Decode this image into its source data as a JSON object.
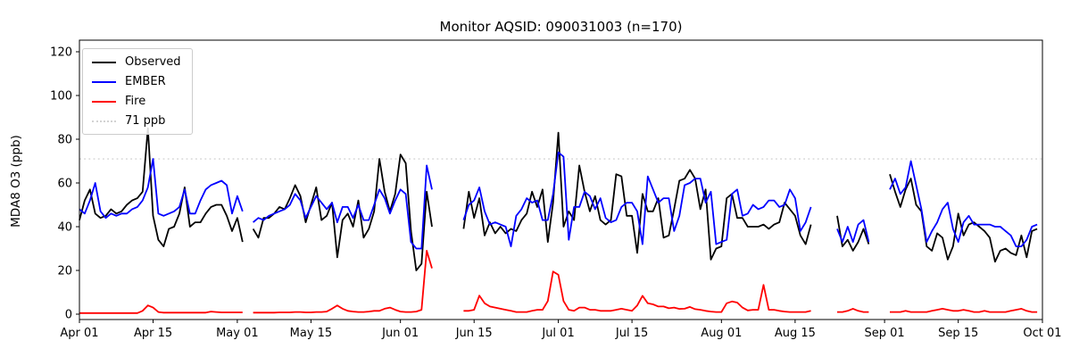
{
  "chart_data": {
    "type": "line",
    "title": "Monitor AQSID: 090031003 (n=170)",
    "ylabel": "MDA8 O3 (ppb)",
    "xlabel": "",
    "n_points": 170,
    "grid": false,
    "legend_position": "upper left",
    "ylim": [
      -2.5,
      125.3
    ],
    "yticks": [
      0,
      20,
      40,
      60,
      80,
      100,
      120
    ],
    "x_total_days": 183,
    "xticks": {
      "labels": [
        "Apr 01",
        "Apr 15",
        "May 01",
        "May 15",
        "Jun 01",
        "Jun 15",
        "Jul 01",
        "Jul 15",
        "Aug 01",
        "Aug 15",
        "Sep 01",
        "Sep 15",
        "Oct 01"
      ],
      "day_offsets": [
        0,
        14,
        30,
        44,
        61,
        75,
        91,
        105,
        122,
        136,
        153,
        167,
        183
      ]
    },
    "threshold": {
      "label": "71 ppb",
      "value": 71,
      "color": "#d3d3d3",
      "style": "dotted"
    },
    "legend_items": [
      {
        "label": "Observed",
        "color": "#000000",
        "dotted": false
      },
      {
        "label": "EMBER",
        "color": "#0000ff",
        "dotted": false
      },
      {
        "label": "Fire",
        "color": "#ff0000",
        "dotted": false
      },
      {
        "label": "71 ppb",
        "color": "#d3d3d3",
        "dotted": true
      }
    ],
    "series": [
      {
        "name": "Observed",
        "color": "#000000",
        "values": [
          43,
          52,
          57,
          46,
          44,
          45,
          48,
          46,
          47,
          50,
          52,
          53,
          56,
          85,
          45,
          34,
          31,
          39,
          40,
          46,
          58,
          40,
          42,
          42,
          46,
          49,
          50,
          50,
          45,
          38,
          44,
          33,
          null,
          39,
          35,
          44,
          44,
          46,
          49,
          48,
          53,
          59,
          54,
          42,
          50,
          58,
          43,
          45,
          51,
          26,
          43,
          46,
          40,
          52,
          35,
          39,
          47,
          71,
          56,
          47,
          55,
          73,
          69,
          38,
          20,
          23,
          56,
          40,
          null,
          null,
          null,
          null,
          null,
          39,
          56,
          44,
          53,
          36,
          42,
          37,
          40,
          37,
          39,
          38,
          43,
          46,
          56,
          49,
          57,
          33,
          51,
          83,
          40,
          47,
          43,
          68,
          56,
          47,
          54,
          43,
          41,
          43,
          64,
          63,
          45,
          45,
          28,
          55,
          47,
          47,
          53,
          35,
          36,
          48,
          61,
          62,
          66,
          62,
          48,
          57,
          25,
          30,
          31,
          53,
          55,
          44,
          44,
          40,
          40,
          40,
          41,
          39,
          41,
          42,
          51,
          48,
          45,
          36,
          32,
          41,
          null,
          null,
          null,
          null,
          45,
          31,
          34,
          29,
          33,
          39,
          32,
          null,
          null,
          null,
          64,
          56,
          49,
          57,
          62,
          50,
          47,
          31,
          29,
          37,
          35,
          25,
          31,
          46,
          36,
          41,
          42,
          40,
          38,
          35,
          24,
          29,
          30,
          28,
          27,
          36,
          26,
          38,
          39
        ]
      },
      {
        "name": "EMBER",
        "color": "#0000ff",
        "values": [
          48,
          46,
          52,
          60,
          47,
          44,
          46,
          45,
          46,
          46,
          48,
          49,
          52,
          58,
          71,
          46,
          45,
          46,
          47,
          49,
          57,
          46,
          46,
          52,
          57,
          59,
          60,
          61,
          59,
          46,
          54,
          47,
          null,
          42,
          44,
          43,
          45,
          46,
          47,
          48,
          50,
          55,
          52,
          44,
          49,
          54,
          51,
          48,
          51,
          42,
          49,
          49,
          44,
          50,
          43,
          43,
          50,
          57,
          53,
          46,
          52,
          57,
          55,
          33,
          30,
          30,
          68,
          57,
          null,
          null,
          null,
          null,
          null,
          43,
          50,
          52,
          58,
          47,
          41,
          42,
          41,
          40,
          31,
          45,
          48,
          53,
          51,
          52,
          43,
          43,
          55,
          74,
          72,
          34,
          49,
          49,
          56,
          54,
          48,
          53,
          44,
          42,
          43,
          49,
          51,
          51,
          47,
          32,
          63,
          57,
          51,
          53,
          53,
          38,
          45,
          59,
          60,
          62,
          62,
          51,
          56,
          32,
          33,
          34,
          55,
          57,
          45,
          46,
          50,
          48,
          49,
          52,
          52,
          49,
          50,
          57,
          53,
          38,
          42,
          49,
          null,
          null,
          null,
          null,
          39,
          33,
          40,
          33,
          41,
          43,
          33,
          null,
          null,
          null,
          57,
          62,
          55,
          58,
          70,
          59,
          48,
          33,
          38,
          42,
          48,
          51,
          39,
          33,
          42,
          45,
          41,
          41,
          41,
          41,
          40,
          40,
          38,
          36,
          31,
          31,
          34,
          40,
          41
        ]
      },
      {
        "name": "Fire",
        "color": "#ff0000",
        "values": [
          0.5,
          0.5,
          0.5,
          0.5,
          0.5,
          0.5,
          0.5,
          0.5,
          0.5,
          0.5,
          0.5,
          0.5,
          1.5,
          4,
          3,
          1,
          0.7,
          0.7,
          0.7,
          0.7,
          0.7,
          0.7,
          0.7,
          0.7,
          0.7,
          1.2,
          1,
          0.8,
          0.8,
          0.8,
          0.8,
          0.8,
          null,
          0.7,
          0.7,
          0.7,
          0.7,
          0.7,
          0.8,
          0.8,
          0.8,
          1,
          1,
          0.8,
          0.8,
          1,
          1,
          1.2,
          2.5,
          4,
          2.5,
          1.5,
          1.2,
          1,
          1,
          1.2,
          1.5,
          1.5,
          2.5,
          3,
          2,
          1.2,
          1,
          1,
          1.2,
          2,
          29,
          21,
          null,
          null,
          null,
          null,
          null,
          1.5,
          1.5,
          2,
          8.5,
          5,
          3.5,
          3,
          2.5,
          2,
          1.5,
          1,
          1,
          1,
          1.5,
          2,
          2,
          6,
          19.5,
          18,
          6,
          2,
          1.5,
          3,
          3,
          2,
          2,
          1.5,
          1.5,
          1.5,
          2,
          2.5,
          2,
          1.5,
          4,
          8.4,
          5,
          4.5,
          3.5,
          3.5,
          2.7,
          3,
          2.4,
          2.5,
          3.3,
          2.3,
          2,
          1.5,
          1.2,
          1,
          1,
          5,
          5.8,
          5.3,
          3,
          1.7,
          2,
          2,
          13.4,
          2,
          2,
          1.5,
          1.2,
          1,
          1,
          1,
          1,
          1.5,
          null,
          null,
          null,
          null,
          1,
          1,
          1.5,
          2.5,
          1.5,
          1,
          1,
          null,
          null,
          null,
          1,
          1,
          1,
          1.5,
          1,
          1,
          1,
          1,
          1.5,
          2,
          2.5,
          2,
          1.5,
          1.5,
          2,
          1.5,
          1,
          1,
          1.5,
          1,
          1,
          1,
          1,
          1.5,
          2,
          2.5,
          1.5,
          1,
          1
        ]
      }
    ]
  }
}
